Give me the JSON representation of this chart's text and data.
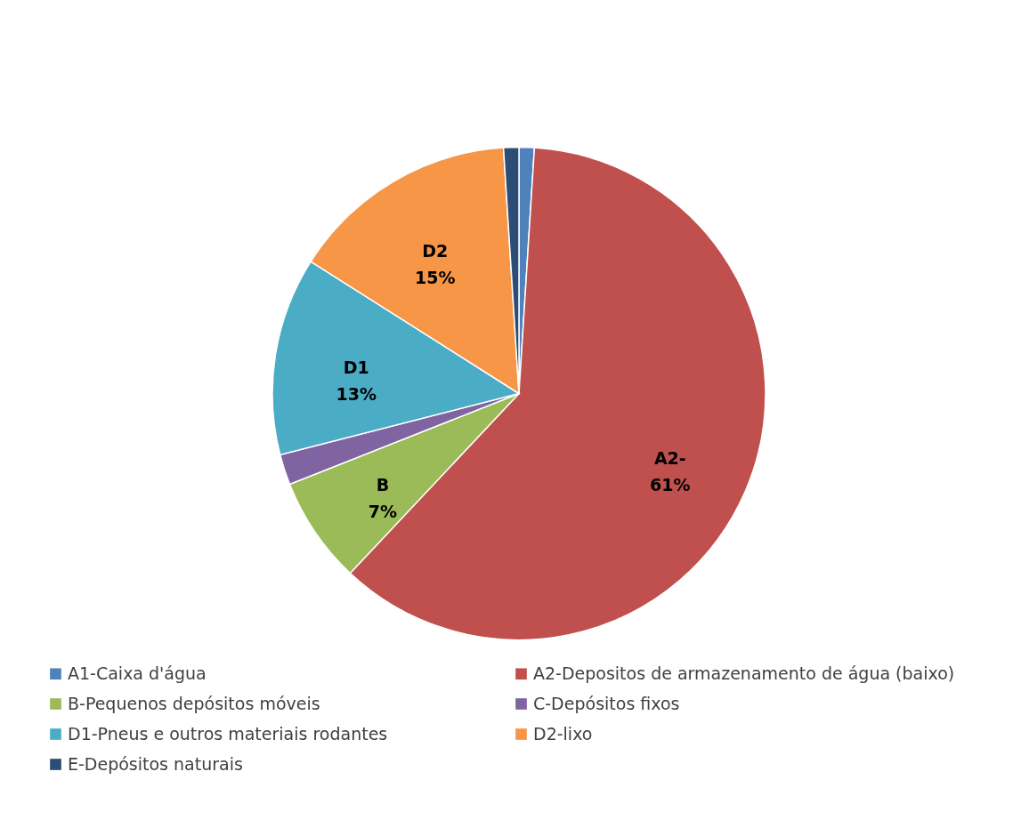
{
  "chart_data": {
    "type": "pie",
    "categories": [
      "A1-Caixa d'água",
      "A2-Depositos de armazenamento de água (baixo)",
      "B-Pequenos depósitos móveis",
      "C-Depósitos fixos",
      "D1-Pneus e outros materiais rodantes",
      "D2-lixo",
      "E-Depósitos naturais"
    ],
    "values": [
      1,
      61,
      7,
      2,
      13,
      15,
      1
    ],
    "colors": [
      "#4f81bd",
      "#c0504d",
      "#9bbb59",
      "#8064a2",
      "#4bacc6",
      "#f79646",
      "#2c4d75"
    ],
    "value_labels": [
      null,
      "A2-\n61%",
      "B\n7%",
      null,
      "D1\n13%",
      "D2\n15%",
      null
    ],
    "legend": "bottom"
  }
}
